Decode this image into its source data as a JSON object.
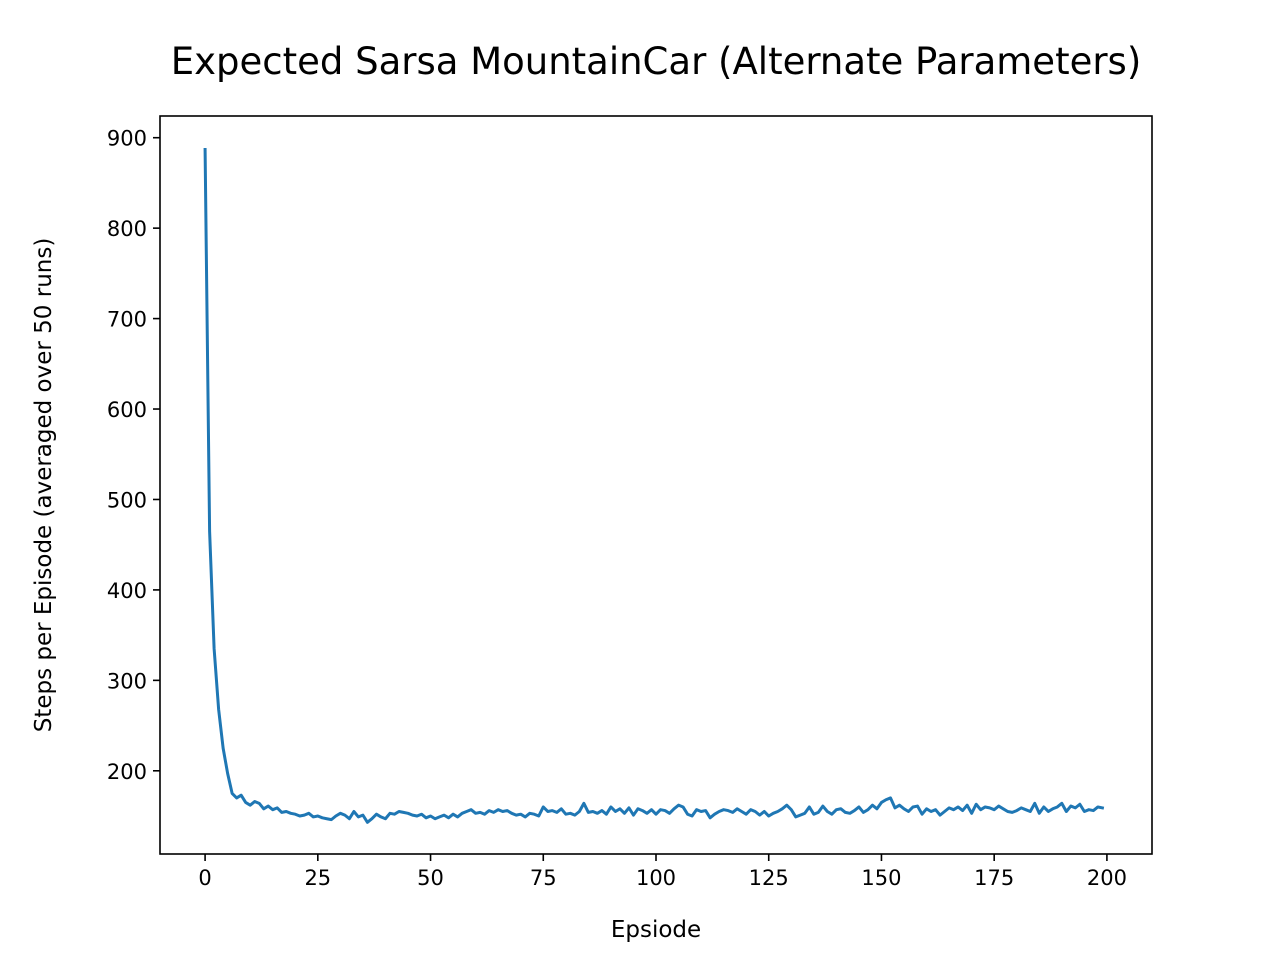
{
  "chart_data": {
    "type": "line",
    "title": "Expected Sarsa MountainCar (Alternate Parameters)",
    "xlabel": "Epsiode",
    "ylabel": "Steps per Episode (averaged over 50 runs)",
    "xlim": [
      -10,
      210
    ],
    "ylim": [
      108,
      924
    ],
    "x_ticks": [
      0,
      25,
      50,
      75,
      100,
      125,
      150,
      175,
      200
    ],
    "y_ticks": [
      200,
      300,
      400,
      500,
      600,
      700,
      800,
      900
    ],
    "grid": false,
    "legend": "none",
    "series_color": "#1f77b4",
    "series": [
      {
        "x": [
          0,
          1,
          2,
          3,
          4,
          5,
          6,
          7,
          8,
          9,
          10,
          11,
          12,
          13,
          14,
          15,
          16,
          17,
          18,
          19,
          20,
          21,
          22,
          23,
          24,
          25,
          26,
          27,
          28,
          29,
          30,
          31,
          32,
          33,
          34,
          35,
          36,
          37,
          38,
          39,
          40,
          41,
          42,
          43,
          44,
          45,
          46,
          47,
          48,
          49,
          50,
          51,
          52,
          53,
          54,
          55,
          56,
          57,
          58,
          59,
          60,
          61,
          62,
          63,
          64,
          65,
          66,
          67,
          68,
          69,
          70,
          71,
          72,
          73,
          74,
          75,
          76,
          77,
          78,
          79,
          80,
          81,
          82,
          83,
          84,
          85,
          86,
          87,
          88,
          89,
          90,
          91,
          92,
          93,
          94,
          95,
          96,
          97,
          98,
          99,
          100,
          101,
          102,
          103,
          104,
          105,
          106,
          107,
          108,
          109,
          110,
          111,
          112,
          113,
          114,
          115,
          116,
          117,
          118,
          119,
          120,
          121,
          122,
          123,
          124,
          125,
          126,
          127,
          128,
          129,
          130,
          131,
          132,
          133,
          134,
          135,
          136,
          137,
          138,
          139,
          140,
          141,
          142,
          143,
          144,
          145,
          146,
          147,
          148,
          149,
          150,
          151,
          152,
          153,
          154,
          155,
          156,
          157,
          158,
          159,
          160,
          161,
          162,
          163,
          164,
          165,
          166,
          167,
          168,
          169,
          170,
          171,
          172,
          173,
          174,
          175,
          176,
          177,
          178,
          179,
          180,
          181,
          182,
          183,
          184,
          185,
          186,
          187,
          188,
          189,
          190,
          191,
          192,
          193,
          194,
          195,
          196,
          197,
          198,
          199
        ],
        "values": [
          887,
          465,
          335,
          268,
          225,
          197,
          175,
          170,
          173,
          165,
          162,
          166,
          164,
          158,
          161,
          157,
          159,
          154,
          155,
          153,
          152,
          150,
          151,
          153,
          149,
          150,
          148,
          147,
          146,
          150,
          153,
          151,
          147,
          155,
          149,
          151,
          143,
          147,
          152,
          149,
          147,
          153,
          152,
          155,
          154,
          153,
          151,
          150,
          152,
          148,
          150,
          147,
          149,
          151,
          148,
          152,
          149,
          153,
          155,
          157,
          153,
          154,
          152,
          156,
          154,
          157,
          155,
          156,
          153,
          151,
          152,
          149,
          153,
          152,
          150,
          160,
          155,
          156,
          154,
          158,
          152,
          153,
          151,
          155,
          164,
          154,
          155,
          153,
          156,
          152,
          160,
          155,
          158,
          153,
          159,
          151,
          158,
          156,
          153,
          157,
          152,
          157,
          156,
          153,
          158,
          162,
          160,
          152,
          150,
          157,
          155,
          156,
          148,
          152,
          155,
          157,
          156,
          154,
          158,
          155,
          152,
          157,
          155,
          151,
          155,
          150,
          153,
          155,
          158,
          162,
          157,
          149,
          151,
          153,
          160,
          152,
          154,
          161,
          155,
          152,
          157,
          158,
          154,
          153,
          156,
          160,
          154,
          157,
          162,
          158,
          165,
          168,
          170,
          159,
          162,
          158,
          155,
          160,
          161,
          152,
          158,
          155,
          157,
          151,
          155,
          159,
          157,
          160,
          156,
          162,
          153,
          163,
          157,
          160,
          159,
          157,
          161,
          158,
          155,
          154,
          156,
          159,
          157,
          155,
          164,
          153,
          160,
          155,
          158,
          160,
          164,
          155,
          161,
          159,
          163,
          155,
          157,
          156,
          160,
          159
        ]
      }
    ]
  }
}
